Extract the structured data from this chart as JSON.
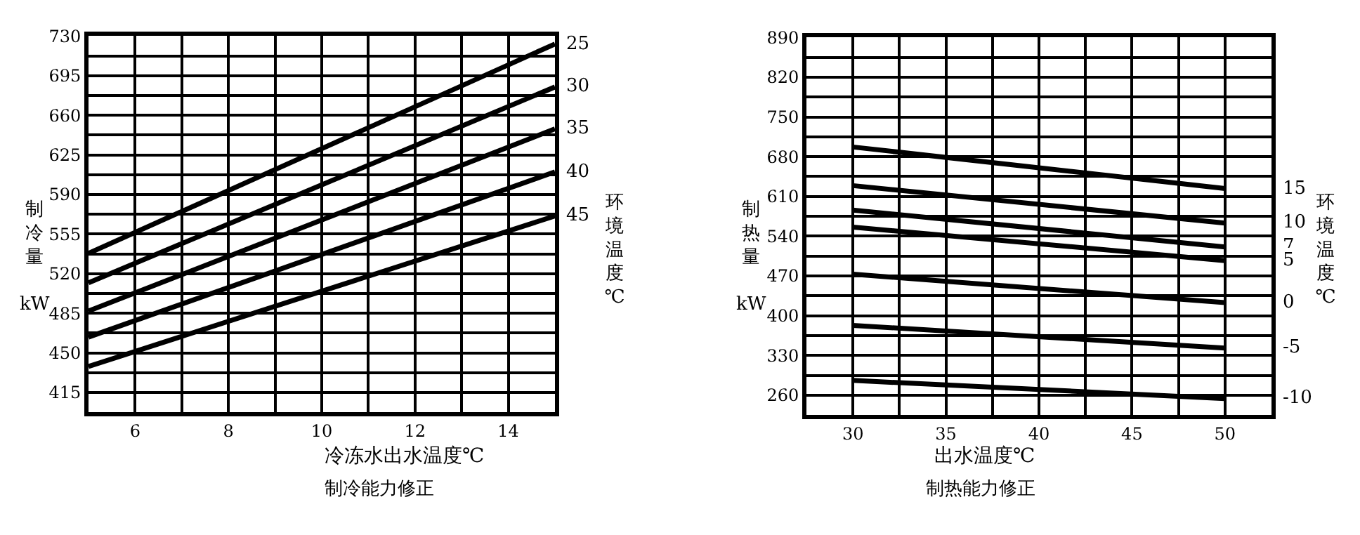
{
  "chart_data": [
    {
      "type": "line",
      "title": "制冷能力修正",
      "xlabel": "冷冻水出水温度℃",
      "ylabel": "制冷量 kW",
      "legend_title": "环境温度℃",
      "x": [
        5,
        15
      ],
      "xlim": [
        5,
        15
      ],
      "xticks": [
        6,
        {
          "value": 7,
          "label": null
        },
        8,
        {
          "value": 9,
          "label": null
        },
        10,
        {
          "value": 11,
          "label": null
        },
        12,
        {
          "value": 13,
          "label": null
        },
        14
      ],
      "ylim": [
        397.5,
        730
      ],
      "yticks": [
        415,
        {
          "value": 432.5,
          "label": null
        },
        450,
        {
          "value": 467.5,
          "label": null
        },
        485,
        {
          "value": 502.5,
          "label": null
        },
        520,
        {
          "value": 537.5,
          "label": null
        },
        555,
        {
          "value": 572.5,
          "label": null
        },
        590,
        {
          "value": 607.5,
          "label": null
        },
        625,
        {
          "value": 642.5,
          "label": null
        },
        660,
        {
          "value": 677.5,
          "label": null
        },
        695,
        {
          "value": 712.5,
          "label": null
        },
        730
      ],
      "grid": true,
      "marker": "none",
      "line_style": "solid",
      "series": [
        {
          "name": "25",
          "color": "#000000",
          "values": [
            538,
            723
          ]
        },
        {
          "name": "30",
          "color": "#000000",
          "values": [
            512,
            685
          ]
        },
        {
          "name": "35",
          "color": "#000000",
          "values": [
            487,
            648
          ]
        },
        {
          "name": "40",
          "color": "#000000",
          "values": [
            464,
            610
          ]
        },
        {
          "name": "45",
          "color": "#000000",
          "values": [
            438,
            571
          ]
        }
      ]
    },
    {
      "type": "line",
      "title": "制热能力修正",
      "xlabel": "出水温度℃",
      "ylabel": "制热量 kW",
      "legend_title": "环境温度℃",
      "x": [
        30,
        50
      ],
      "xlim": [
        27.5,
        52.5
      ],
      "xticks": [
        30,
        {
          "value": 32.5,
          "label": null
        },
        35,
        {
          "value": 37.5,
          "label": null
        },
        40,
        {
          "value": 42.5,
          "label": null
        },
        45,
        {
          "value": 47.5,
          "label": null
        },
        50
      ],
      "ylim": [
        225,
        890
      ],
      "yticks": [
        260,
        {
          "value": 295,
          "label": null
        },
        330,
        {
          "value": 365,
          "label": null
        },
        400,
        {
          "value": 435,
          "label": null
        },
        470,
        {
          "value": 505,
          "label": null
        },
        540,
        {
          "value": 575,
          "label": null
        },
        610,
        {
          "value": 645,
          "label": null
        },
        680,
        {
          "value": 715,
          "label": null
        },
        750,
        {
          "value": 785,
          "label": null
        },
        820,
        {
          "value": 855,
          "label": null
        },
        890
      ],
      "grid": true,
      "marker": "none",
      "line_style": "solid",
      "series": [
        {
          "name": "15",
          "color": "#000000",
          "values": [
            697,
            624
          ]
        },
        {
          "name": "10",
          "color": "#000000",
          "values": [
            629,
            563
          ]
        },
        {
          "name": "7",
          "color": "#000000",
          "values": [
            586,
            521
          ]
        },
        {
          "name": "5",
          "color": "#000000",
          "values": [
            556,
            497
          ]
        },
        {
          "name": "0",
          "color": "#000000",
          "values": [
            473,
            423
          ]
        },
        {
          "name": "-5",
          "color": "#000000",
          "values": [
            383,
            343
          ]
        },
        {
          "name": "-10",
          "color": "#000000",
          "values": [
            286,
            254
          ]
        }
      ]
    }
  ]
}
